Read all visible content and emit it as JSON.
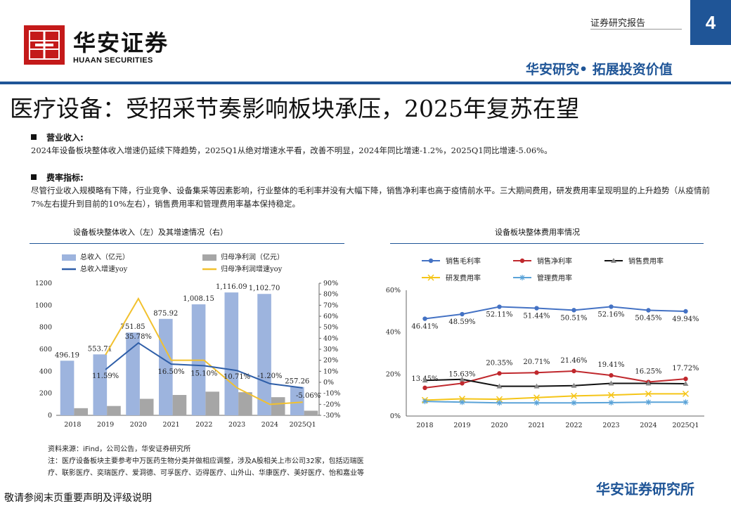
{
  "header": {
    "logo_cn": "华安证券",
    "logo_en": "HUAAN SECURITIES",
    "report_type": "证券研究报告",
    "page_number": "4",
    "slogan": "华安研究• 拓展投资价值",
    "brand_color": "#1f5597",
    "logo_color": "#c41a1a"
  },
  "title": "医疗设备：受招采节奏影响板块承压，2025年复苏在望",
  "sections": [
    {
      "heading": "营业收入:",
      "text": "2024年设备板块整体收入增速仍延续下降趋势，2025Q1从绝对增速水平看，改善不明显，2024年同比增速-1.2%，2025Q1同比增速-5.06%。"
    },
    {
      "heading": "费率指标:",
      "text": "尽管行业收入规模略有下降，行业竞争、设备集采等因素影响，行业整体的毛利率并没有大幅下降，销售净利率也高于疫情前水平。三大期间费用，研发费用率呈现明显的上升趋势（从疫情前7%左右提升到目前的10%左右），销售费用率和管理费用率基本保持稳定。"
    }
  ],
  "chart_titles": [
    "设备板块整体收入（左）及其增速情况（右）",
    "设备板块整体费用率情况"
  ],
  "chart_data": [
    {
      "type": "bar",
      "title": "设备板块整体收入（左）及其增速情况（右）",
      "categories": [
        "2018",
        "2019",
        "2020",
        "2021",
        "2022",
        "2023",
        "2024",
        "2025Q1"
      ],
      "ylim_left": [
        0,
        1200
      ],
      "yticks_left": [
        "0",
        "200",
        "400",
        "600",
        "800",
        "1000",
        "1200"
      ],
      "ylim_right": [
        -30,
        90
      ],
      "yticks_right": [
        "-30%",
        "-20%",
        "-10%",
        "0%",
        "10%",
        "20%",
        "30%",
        "40%",
        "50%",
        "60%",
        "70%",
        "80%",
        "90%"
      ],
      "series": [
        {
          "name": "总收入（亿元）",
          "kind": "bar",
          "axis": "left",
          "color": "#9db4de",
          "values": [
            496.19,
            553.71,
            751.85,
            875.92,
            1008.15,
            1116.09,
            1102.7,
            257.26
          ],
          "labels": [
            "496.19",
            "553.71",
            "751.85",
            "875.92",
            "1,008.15",
            "1,116.09",
            "1,102.70",
            "257.26"
          ]
        },
        {
          "name": "归母净利润（亿元）",
          "kind": "bar",
          "axis": "left",
          "color": "#a6a6a6",
          "values": [
            65,
            85,
            150,
            185,
            215,
            210,
            165,
            42
          ]
        },
        {
          "name": "总收入增速yoy",
          "kind": "line",
          "axis": "right",
          "color": "#2e5ea8",
          "values": [
            null,
            11.59,
            35.78,
            16.5,
            15.1,
            10.71,
            -1.2,
            -5.06
          ],
          "labels": [
            "",
            "11.59%",
            "35.78%",
            "16.50%",
            "15.10%",
            "10.71%",
            "-1.20%",
            "-5.06%"
          ]
        },
        {
          "name": "归母净利润增速yoy",
          "kind": "line",
          "axis": "right",
          "color": "#f2c12e",
          "values": [
            null,
            25,
            76,
            20,
            20,
            -5,
            -20,
            -18
          ]
        }
      ],
      "legend": "top"
    },
    {
      "type": "line",
      "title": "设备板块整体费用率情况",
      "categories": [
        "2018",
        "2019",
        "2020",
        "2021",
        "2022",
        "2023",
        "2024",
        "2025Q1"
      ],
      "ylim": [
        0,
        60
      ],
      "yticks": [
        "0%",
        "20%",
        "40%",
        "60%"
      ],
      "series": [
        {
          "name": "销售毛利率",
          "color": "#4472c4",
          "marker": "circle",
          "values": [
            46.41,
            48.59,
            52.11,
            51.44,
            50.51,
            52.16,
            50.45,
            49.94
          ],
          "labels": [
            "46.41%",
            "48.59%",
            "52.11%",
            "51.44%",
            "50.51%",
            "52.16%",
            "50.45%",
            "49.94%"
          ]
        },
        {
          "name": "销售净利率",
          "color": "#c0282d",
          "marker": "circle",
          "values": [
            13.45,
            15.63,
            20.35,
            20.71,
            21.46,
            19.41,
            16.25,
            17.72
          ],
          "labels": [
            "13.45%",
            "15.63%",
            "20.35%",
            "20.71%",
            "21.46%",
            "19.41%",
            "16.25%",
            "17.72%"
          ]
        },
        {
          "name": "销售费用率",
          "color": "#111111",
          "marker": "triangle",
          "values": [
            17.0,
            17.5,
            14.2,
            14.2,
            14.5,
            15.6,
            15.6,
            15.4
          ]
        },
        {
          "name": "研发费用率",
          "color": "#f5c518",
          "marker": "x",
          "values": [
            7.6,
            8.2,
            8.0,
            8.8,
            9.6,
            10.0,
            10.6,
            10.6
          ]
        },
        {
          "name": "管理费用率",
          "color": "#5aa3d8",
          "marker": "star",
          "values": [
            7.0,
            6.6,
            6.3,
            6.3,
            6.3,
            6.4,
            6.6,
            6.6
          ]
        }
      ],
      "legend": "top"
    }
  ],
  "footer": {
    "source": "资料来源：iFind，公司公告，华安证券研究所",
    "note_line1": "注：医疗设备板块主要参考中万医药生物分类并做相应调整，涉及A股相关上市公司32家，包括迈瑞医",
    "note_line2": "疗、联影医疗、奕瑞医疗、爱洞德、可孚医疗、迈得医疗、山外山、华康医疗、美好医疗、怡和嘉业等",
    "disclaimer": "敬请参阅末页重要声明及评级说明",
    "brand": "华安证券研究所"
  }
}
